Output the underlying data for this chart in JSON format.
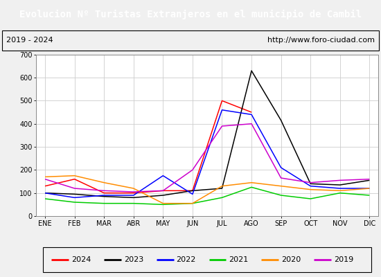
{
  "title": "Evolucion Nº Turistas Extranjeros en el municipio de Cambil",
  "subtitle_left": "2019 - 2024",
  "subtitle_right": "http://www.foro-ciudad.com",
  "title_bg": "#4472c4",
  "title_color": "white",
  "months": [
    "ENE",
    "FEB",
    "MAR",
    "ABR",
    "MAY",
    "JUN",
    "JUL",
    "AGO",
    "SEP",
    "OCT",
    "NOV",
    "DIC"
  ],
  "ylim": [
    0,
    700
  ],
  "yticks": [
    0,
    100,
    200,
    300,
    400,
    500,
    600,
    700
  ],
  "series": {
    "2024": {
      "color": "#ff0000",
      "data": [
        130,
        160,
        100,
        100,
        110,
        110,
        500,
        450,
        null,
        null,
        null,
        null
      ]
    },
    "2023": {
      "color": "#000000",
      "data": [
        100,
        95,
        85,
        80,
        90,
        110,
        120,
        630,
        415,
        140,
        135,
        155
      ]
    },
    "2022": {
      "color": "#0000ff",
      "data": [
        100,
        80,
        90,
        90,
        175,
        95,
        460,
        440,
        210,
        130,
        120,
        120
      ]
    },
    "2021": {
      "color": "#00cc00",
      "data": [
        75,
        60,
        55,
        55,
        50,
        55,
        80,
        125,
        90,
        75,
        100,
        90
      ]
    },
    "2020": {
      "color": "#ff8c00",
      "data": [
        170,
        175,
        145,
        120,
        55,
        55,
        130,
        145,
        130,
        115,
        110,
        120
      ]
    },
    "2019": {
      "color": "#cc00cc",
      "data": [
        160,
        120,
        110,
        105,
        110,
        200,
        390,
        400,
        165,
        145,
        155,
        160
      ]
    }
  },
  "legend_order": [
    "2024",
    "2023",
    "2022",
    "2021",
    "2020",
    "2019"
  ],
  "bg_color": "#f0f0f0",
  "plot_bg": "#ffffff",
  "grid_color": "#cccccc",
  "title_fontsize": 10,
  "subtitle_fontsize": 8,
  "tick_fontsize": 7,
  "legend_fontsize": 8
}
